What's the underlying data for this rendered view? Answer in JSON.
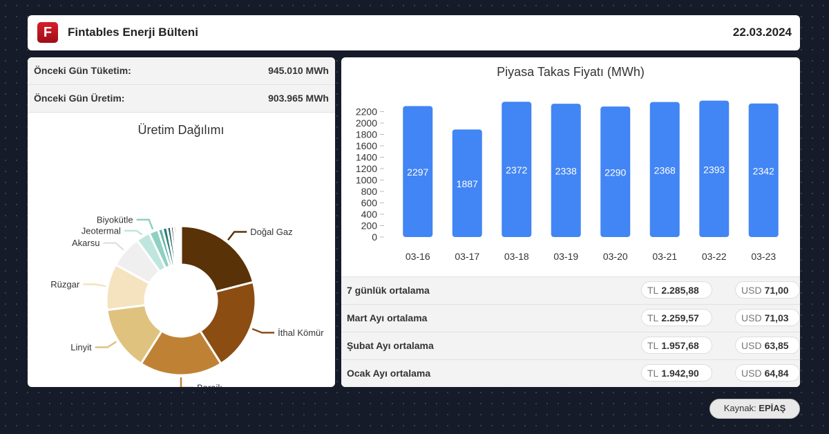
{
  "header": {
    "logo": "F",
    "title": "Fintables Enerji Bülteni",
    "date": "22.03.2024"
  },
  "stats": [
    {
      "label": "Önceki Gün Tüketim:",
      "value": "945.010 MWh"
    },
    {
      "label": "Önceki Gün Üretim:",
      "value": "903.965 MWh"
    }
  ],
  "chart_data": [
    {
      "type": "pie",
      "donut": true,
      "title": "Üretim Dağılımı",
      "categories": [
        "Doğal Gaz",
        "İthal Kömür",
        "Barajlı",
        "Linyit",
        "Rüzgar",
        "Akarsu",
        "Jeotermal",
        "Biyokütle",
        null,
        null,
        null,
        null,
        null,
        null,
        null,
        null,
        null
      ],
      "values": [
        21,
        20,
        18,
        14,
        10,
        7,
        3,
        2,
        1,
        1,
        0.8,
        0.6,
        0.5,
        0.4,
        0.3,
        0.2,
        0.2
      ],
      "colors": [
        "#5a3208",
        "#8b4d12",
        "#bf8235",
        "#e0c27f",
        "#f5e3bf",
        "#efefef",
        "#bfe6de",
        "#8fd0c3",
        "#5fb3a3",
        "#2e7d75",
        "#1f5c58",
        "#3b3b3b",
        "#6b4a2a",
        "#8b6a3f",
        "#a88b5a",
        "#c7ab7a",
        "#e5d2a8"
      ]
    },
    {
      "type": "bar",
      "title": "Piyasa Takas Fiyatı (MWh)",
      "categories": [
        "03-16",
        "03-17",
        "03-18",
        "03-19",
        "03-20",
        "03-21",
        "03-22",
        "03-23"
      ],
      "values": [
        2297,
        1887,
        2372,
        2338,
        2290,
        2368,
        2393,
        2342
      ],
      "color": "#4285f4",
      "ylim": [
        0,
        2400
      ],
      "yticks": [
        0,
        200,
        400,
        600,
        800,
        1000,
        1200,
        1400,
        1600,
        1800,
        2000,
        2200
      ],
      "grid": false
    }
  ],
  "averages": [
    {
      "label": "7 günlük ortalama",
      "tl": {
        "currency": "TL",
        "amount": "2.285,88"
      },
      "usd": {
        "currency": "USD",
        "amount": "71,00"
      }
    },
    {
      "label": "Mart Ayı ortalama",
      "tl": {
        "currency": "TL",
        "amount": "2.259,57"
      },
      "usd": {
        "currency": "USD",
        "amount": "71,03"
      }
    },
    {
      "label": "Şubat Ayı ortalama",
      "tl": {
        "currency": "TL",
        "amount": "1.957,68"
      },
      "usd": {
        "currency": "USD",
        "amount": "63,85"
      }
    },
    {
      "label": "Ocak Ayı ortalama",
      "tl": {
        "currency": "TL",
        "amount": "1.942,90"
      },
      "usd": {
        "currency": "USD",
        "amount": "64,84"
      }
    }
  ],
  "source": {
    "label": "Kaynak:",
    "value": "EPİAŞ"
  }
}
